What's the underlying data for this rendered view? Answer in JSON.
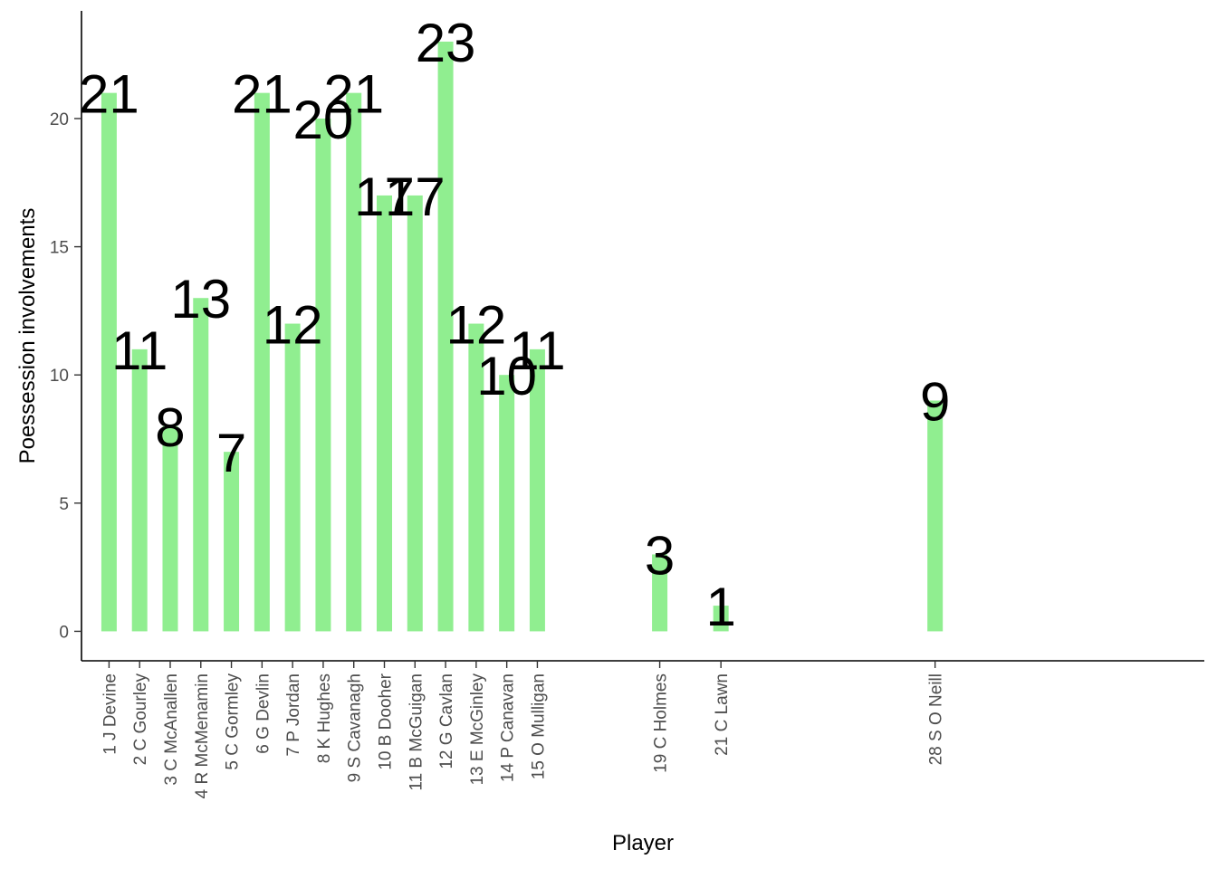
{
  "chart_data": {
    "type": "bar",
    "title": "",
    "xlabel": "Player",
    "ylabel": "Poessession involvements",
    "ylim": [
      -1.15,
      24.2
    ],
    "yticks": [
      0,
      5,
      10,
      15,
      20
    ],
    "grid": false,
    "bar_color": "#90EE90",
    "x_positions": [
      1,
      2,
      3,
      4,
      5,
      6,
      7,
      8,
      9,
      10,
      11,
      12,
      13,
      14,
      15,
      19,
      21,
      28
    ],
    "xlim": [
      0.1,
      36.8
    ],
    "categories": [
      "1 J Devine",
      "2 C Gourley",
      "3 C McAnallen",
      "4 R McMenamin",
      "5 C Gormley",
      "6 G Devlin",
      "7 P Jordan",
      "8 K Hughes",
      "9 S Cavanagh",
      "10 B Dooher",
      "11 B McGuigan",
      "12 G Cavlan",
      "13 E McGinley",
      "14 P Canavan",
      "15 O Mulligan",
      "19 C Holmes",
      "21 C Lawn",
      "28 S O Neill"
    ],
    "values": [
      21,
      11,
      8,
      13,
      7,
      21,
      12,
      20,
      21,
      17,
      17,
      23,
      12,
      10,
      11,
      3,
      1,
      9
    ]
  }
}
